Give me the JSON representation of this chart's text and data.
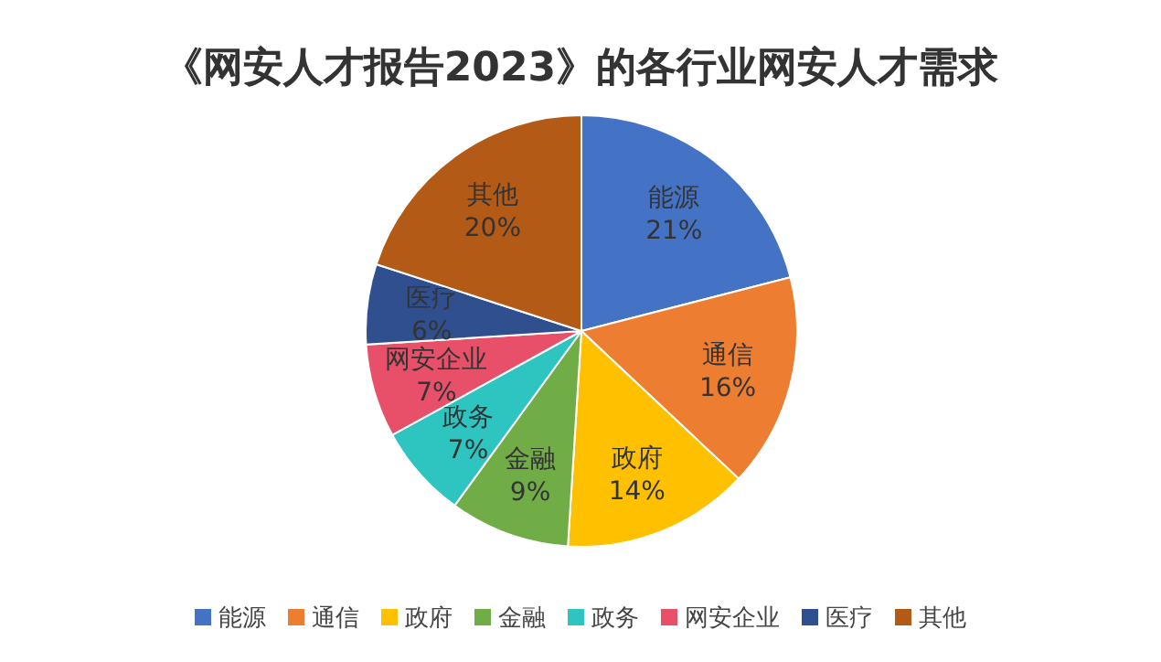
{
  "chart_data": {
    "type": "pie",
    "title": "《网安人才报告2023》的各行业网安人才需求",
    "categories": [
      "能源",
      "通信",
      "政府",
      "金融",
      "政务",
      "网安企业",
      "医疗",
      "其他"
    ],
    "values": [
      21,
      16,
      14,
      9,
      7,
      7,
      6,
      20
    ],
    "colors": [
      "#4472c4",
      "#ed7d31",
      "#ffc000",
      "#70ad47",
      "#2ec4c0",
      "#e8506a",
      "#2f4f8f",
      "#b35a17"
    ],
    "value_labels": [
      "21%",
      "16%",
      "14%",
      "9%",
      "7%",
      "7%",
      "6%",
      "20%"
    ],
    "legend": "bottom"
  }
}
